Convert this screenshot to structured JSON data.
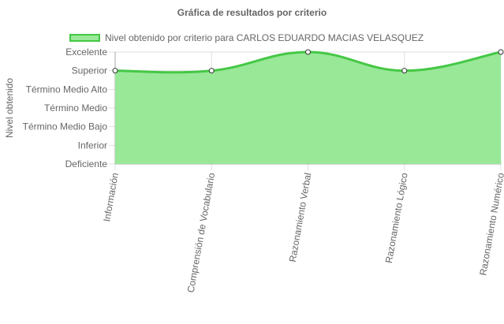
{
  "chart_data": {
    "type": "area",
    "title": "Gráfica de resultados por criterio",
    "ylabel": "Nivel obtenido",
    "xlabel": "",
    "categories": [
      "Información",
      "Comprensión de Vocabulario",
      "Razonamiento Verbal",
      "Razonamiento Lógico",
      "Razonamiento Numérico"
    ],
    "y_levels": [
      "Deficiente",
      "Inferior",
      "Término Medio Bajo",
      "Término Medio",
      "Término Medio Alto",
      "Superior",
      "Excelente"
    ],
    "series": [
      {
        "name": "Nivel obtenido por criterio para CARLOS EDUARDO MACIAS VELASQUEZ",
        "values": [
          "Superior",
          "Superior",
          "Excelente",
          "Superior",
          "Excelente"
        ],
        "fill_color": "#98e898",
        "line_color": "#45c845"
      }
    ],
    "ylim": [
      "Deficiente",
      "Excelente"
    ],
    "grid": true,
    "legend_position": "top"
  }
}
